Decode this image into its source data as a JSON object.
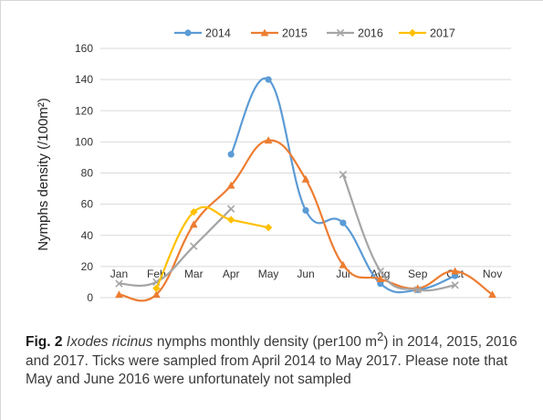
{
  "chart_data": {
    "type": "line",
    "categories": [
      "Jan",
      "Feb",
      "Mar",
      "Apr",
      "May",
      "Jun",
      "Jul",
      "Aug",
      "Sep",
      "Oct",
      "Nov"
    ],
    "ylabel": "Nymphs density (/100m²)",
    "ylim": [
      0,
      160
    ],
    "yticks": [
      0,
      20,
      40,
      60,
      80,
      100,
      120,
      140,
      160
    ],
    "grid": "horizontal",
    "legend_position": "top",
    "series": [
      {
        "name": "2014",
        "color": "#5b9bd5",
        "marker": "circle",
        "values": [
          null,
          null,
          null,
          92,
          140,
          56,
          48,
          9,
          5,
          14,
          null
        ]
      },
      {
        "name": "2015",
        "color": "#ed7d31",
        "marker": "triangle",
        "values": [
          2,
          2,
          47,
          72,
          101,
          76,
          21,
          12,
          6,
          17,
          2
        ]
      },
      {
        "name": "2016",
        "color": "#a5a5a5",
        "marker": "x",
        "values": [
          9,
          10,
          33,
          57,
          null,
          null,
          79,
          17,
          5,
          8,
          null
        ]
      },
      {
        "name": "2017",
        "color": "#ffc000",
        "marker": "diamond",
        "values": [
          null,
          6,
          55,
          50,
          45,
          null,
          null,
          null,
          null,
          null,
          null
        ]
      }
    ]
  },
  "caption": {
    "label": "Fig. 2",
    "species": "Ixodes ricinus",
    "text_before_sup": " nymphs monthly density (per100 m",
    "sup": "2",
    "text_after_sup": ") in 2014, 2015, 2016 and 2017. Ticks were sampled from April 2014 to May 2017. Please note that May and June 2016 were unfortunately not sampled"
  }
}
